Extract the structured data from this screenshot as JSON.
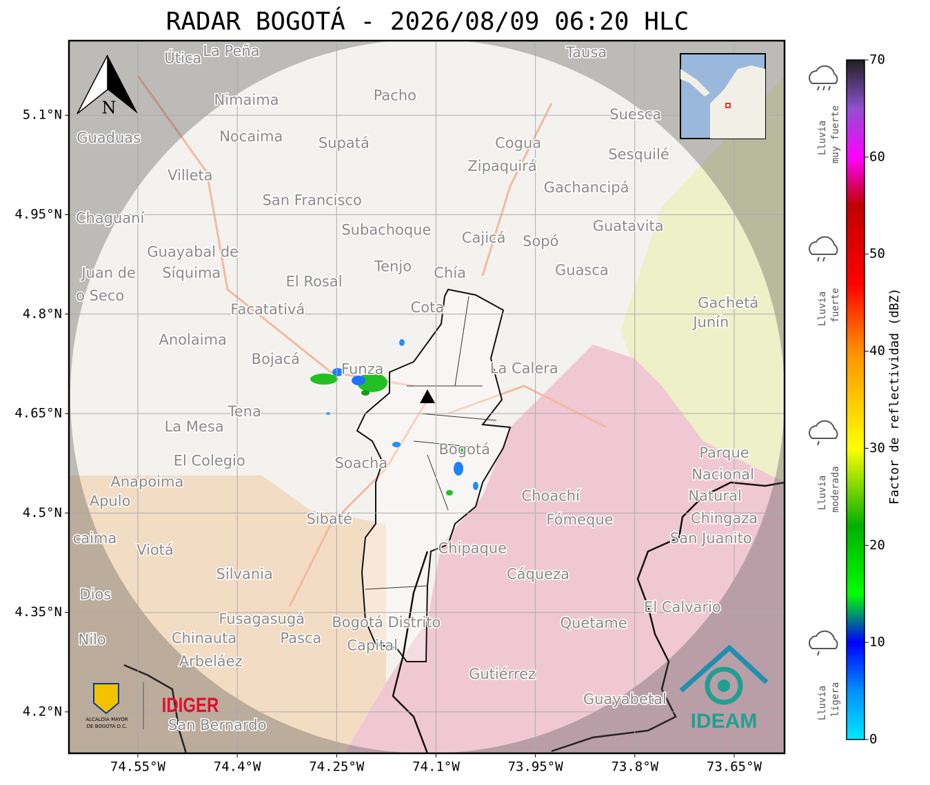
{
  "title": "RADAR BOGOTÁ - 2026/08/09 06:20 HLC",
  "map": {
    "xlim": [
      -74.654,
      -73.574
    ],
    "ylim": [
      4.1375,
      5.2125
    ],
    "xticks": [
      {
        "value": -74.55,
        "label": "74.55°W"
      },
      {
        "value": -74.4,
        "label": "74.4°W"
      },
      {
        "value": -74.25,
        "label": "74.25°W"
      },
      {
        "value": -74.1,
        "label": "74.1°W"
      },
      {
        "value": -73.95,
        "label": "73.95°W"
      },
      {
        "value": -73.8,
        "label": "73.8°W"
      },
      {
        "value": -73.65,
        "label": "73.65°W"
      }
    ],
    "yticks": [
      {
        "value": 5.1,
        "label": "5.1°N"
      },
      {
        "value": 4.95,
        "label": "4.95°N"
      },
      {
        "value": 4.8,
        "label": "4.8°N"
      },
      {
        "value": 4.65,
        "label": "4.65°N"
      },
      {
        "value": 4.5,
        "label": "4.5°N"
      },
      {
        "value": 4.35,
        "label": "4.35°N"
      },
      {
        "value": 4.2,
        "label": "4.2°N"
      }
    ],
    "grid": true,
    "places": [
      {
        "label": "Útica",
        "lon": -74.482,
        "lat": 5.185
      },
      {
        "label": "La Peña",
        "lon": -74.409,
        "lat": 5.196
      },
      {
        "label": "Tausa",
        "lon": -73.873,
        "lat": 5.194
      },
      {
        "label": "Pacho",
        "lon": -74.162,
        "lat": 5.129
      },
      {
        "label": "Nimaima",
        "lon": -74.386,
        "lat": 5.122
      },
      {
        "label": "Guaduas",
        "lon": -74.594,
        "lat": 5.065
      },
      {
        "label": "Nocaima",
        "lon": -74.379,
        "lat": 5.067
      },
      {
        "label": "Supatá",
        "lon": -74.239,
        "lat": 5.057
      },
      {
        "label": "Cogua",
        "lon": -73.976,
        "lat": 5.057
      },
      {
        "label": "Suesca",
        "lon": -73.799,
        "lat": 5.1
      },
      {
        "label": "Sesquilé",
        "lon": -73.794,
        "lat": 5.04
      },
      {
        "label": "Zipaquirá",
        "lon": -74.0,
        "lat": 5.022
      },
      {
        "label": "Villeta",
        "lon": -74.471,
        "lat": 5.008
      },
      {
        "label": "Gachancipá",
        "lon": -73.873,
        "lat": 4.99
      },
      {
        "label": "San Francisco",
        "lon": -74.287,
        "lat": 4.971
      },
      {
        "label": "Chaguaní",
        "lon": -74.592,
        "lat": 4.944
      },
      {
        "label": "Guatavita",
        "lon": -73.81,
        "lat": 4.932
      },
      {
        "label": "Subachoque",
        "lon": -74.175,
        "lat": 4.926
      },
      {
        "label": "Cajicá",
        "lon": -74.028,
        "lat": 4.914
      },
      {
        "label": "Sopó",
        "lon": -73.942,
        "lat": 4.909
      },
      {
        "label": "Guayabal de",
        "lon": -74.467,
        "lat": 4.893
      },
      {
        "label": "Síquima",
        "lon": -74.469,
        "lat": 4.861
      },
      {
        "label": "Juan de",
        "lon": -74.594,
        "lat": 4.861
      },
      {
        "label": "Tenjo",
        "lon": -74.165,
        "lat": 4.871
      },
      {
        "label": "Chía",
        "lon": -74.079,
        "lat": 4.861
      },
      {
        "label": "Guasca",
        "lon": -73.88,
        "lat": 4.865
      },
      {
        "label": "El Rosal",
        "lon": -74.284,
        "lat": 4.848
      },
      {
        "label": "o Seco",
        "lon": -74.607,
        "lat": 4.827
      },
      {
        "label": "Facatativá",
        "lon": -74.354,
        "lat": 4.806
      },
      {
        "label": "Cota",
        "lon": -74.113,
        "lat": 4.809
      },
      {
        "label": "Gachetá",
        "lon": -73.659,
        "lat": 4.816
      },
      {
        "label": "Junín",
        "lon": -73.685,
        "lat": 4.787
      },
      {
        "label": "Anolaima",
        "lon": -74.467,
        "lat": 4.76
      },
      {
        "label": "Bojacá",
        "lon": -74.342,
        "lat": 4.731
      },
      {
        "label": "Funza",
        "lon": -74.211,
        "lat": 4.716
      },
      {
        "label": "La Calera",
        "lon": -73.967,
        "lat": 4.717
      },
      {
        "label": "Tena",
        "lon": -74.389,
        "lat": 4.652
      },
      {
        "label": "La Mesa",
        "lon": -74.465,
        "lat": 4.629
      },
      {
        "label": "Parque",
        "lon": -73.665,
        "lat": 4.59
      },
      {
        "label": "Bogotá",
        "lon": -74.057,
        "lat": 4.595
      },
      {
        "label": "El Colegio",
        "lon": -74.442,
        "lat": 4.578
      },
      {
        "label": "Soacha",
        "lon": -74.213,
        "lat": 4.574
      },
      {
        "label": "Nacional",
        "lon": -73.667,
        "lat": 4.557
      },
      {
        "label": "Anapoima",
        "lon": -74.536,
        "lat": 4.546
      },
      {
        "label": "Natural",
        "lon": -73.679,
        "lat": 4.525
      },
      {
        "label": "Apulo",
        "lon": -74.592,
        "lat": 4.517
      },
      {
        "label": "Choachí",
        "lon": -73.927,
        "lat": 4.525
      },
      {
        "label": "Chingaza",
        "lon": -73.665,
        "lat": 4.491
      },
      {
        "label": "Sibaté",
        "lon": -74.261,
        "lat": 4.49
      },
      {
        "label": "Fómeque",
        "lon": -73.883,
        "lat": 4.489
      },
      {
        "label": "San Juanito",
        "lon": -73.685,
        "lat": 4.461
      },
      {
        "label": "caima",
        "lon": -74.615,
        "lat": 4.461
      },
      {
        "label": "Viotá",
        "lon": -74.524,
        "lat": 4.443
      },
      {
        "label": "Chipaque",
        "lon": -74.045,
        "lat": 4.446
      },
      {
        "label": "Silvania",
        "lon": -74.389,
        "lat": 4.407
      },
      {
        "label": "Cáqueza",
        "lon": -73.946,
        "lat": 4.407
      },
      {
        "label": "Dios",
        "lon": -74.614,
        "lat": 4.376
      },
      {
        "label": "El Calvario",
        "lon": -73.728,
        "lat": 4.357
      },
      {
        "label": "Fusagasugá",
        "lon": -74.363,
        "lat": 4.339
      },
      {
        "label": "Bogotá Distrito",
        "lon": -74.175,
        "lat": 4.334
      },
      {
        "label": "Quetame",
        "lon": -73.862,
        "lat": 4.333
      },
      {
        "label": "Nilo",
        "lon": -74.619,
        "lat": 4.308
      },
      {
        "label": "Chinauta",
        "lon": -74.45,
        "lat": 4.31
      },
      {
        "label": "Pasca",
        "lon": -74.304,
        "lat": 4.31
      },
      {
        "label": "Capital",
        "lon": -74.196,
        "lat": 4.299
      },
      {
        "label": "Arbeláez",
        "lon": -74.44,
        "lat": 4.275
      },
      {
        "label": "Gutiérrez",
        "lon": -74.0,
        "lat": 4.256
      },
      {
        "label": "Guayabetal",
        "lon": -73.815,
        "lat": 4.218
      },
      {
        "label": "San Bernardo",
        "lon": -74.43,
        "lat": 4.179
      }
    ],
    "north_label": "N"
  },
  "colorbar": {
    "label": "Factor de reflectividad (dBZ)",
    "lim": [
      0,
      70
    ],
    "ticks": [
      0,
      10,
      20,
      30,
      40,
      50,
      60,
      70
    ],
    "colormap": [
      {
        "value": 0,
        "color": "#00e8ff"
      },
      {
        "value": 5,
        "color": "#0090ff"
      },
      {
        "value": 10,
        "color": "#0000ff"
      },
      {
        "value": 15,
        "color": "#00ff00"
      },
      {
        "value": 22,
        "color": "#00b000"
      },
      {
        "value": 30,
        "color": "#ffff00"
      },
      {
        "value": 40,
        "color": "#ff9000"
      },
      {
        "value": 47,
        "color": "#ff0000"
      },
      {
        "value": 55,
        "color": "#c00000"
      },
      {
        "value": 60,
        "color": "#ff00ff"
      },
      {
        "value": 65,
        "color": "#9050d0"
      },
      {
        "value": 70,
        "color": "#202020"
      }
    ],
    "categories": [
      {
        "line1": "Lluvia",
        "line2": "muy fuerte"
      },
      {
        "line1": "Lluvia",
        "line2": "fuerte"
      },
      {
        "line1": "Lluvia",
        "line2": "moderada"
      },
      {
        "line1": "Lluvia",
        "line2": "ligera"
      }
    ]
  },
  "logos": {
    "alcaldia_1": "ALCALDÍA MAYOR",
    "alcaldia_2": "DE BOGOTÁ D.C.",
    "idiger": "IDIGER",
    "ideam": "IDEAM"
  }
}
